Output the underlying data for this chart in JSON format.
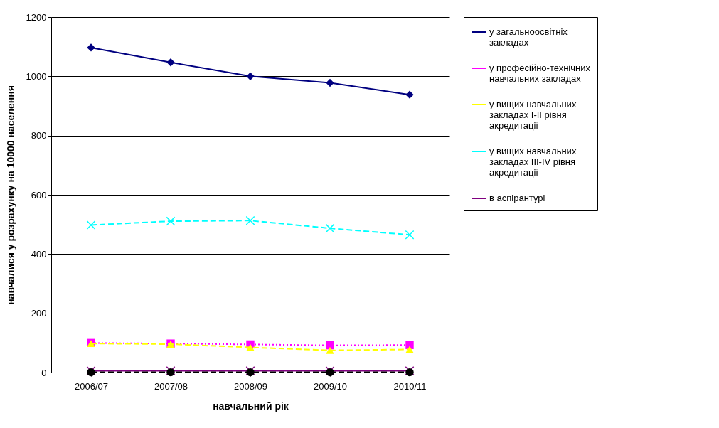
{
  "chart_data": {
    "type": "line",
    "xlabel": "навчальний рік",
    "ylabel": "навчалися у розрахунку на 10000 населення",
    "categories": [
      "2006/07",
      "2007/08",
      "2008/09",
      "2009/10",
      "2010/11"
    ],
    "series": [
      {
        "name": "у загальноосвітніх закладах",
        "color": "#000080",
        "marker": "diamond",
        "line_style": "solid",
        "values": [
          1097,
          1047,
          1000,
          978,
          938
        ]
      },
      {
        "name": "у професійно-технічних навчальних закладах",
        "color": "#ff00ff",
        "marker": "square",
        "line_style": "dotted",
        "values": [
          100,
          98,
          95,
          92,
          93
        ]
      },
      {
        "name": "у вищих навчальних закладах I-II рівня акредитації",
        "color": "#ffff00",
        "marker": "triangle",
        "line_style": "dashed",
        "values": [
          98,
          96,
          85,
          75,
          78
        ]
      },
      {
        "name": "у вищих навчальних закладах III-IV рівня акредитації",
        "color": "#00ffff",
        "marker": "cross",
        "line_style": "dashed",
        "values": [
          498,
          511,
          513,
          487,
          465
        ]
      },
      {
        "name": "в аспірантурі",
        "color": "#800080",
        "marker": "cross",
        "line_style": "solid",
        "values": [
          6,
          6,
          6,
          6,
          6
        ]
      },
      {
        "color": "#000000",
        "marker": "circle",
        "line_style": "dashed",
        "values": [
          1,
          1,
          1,
          1,
          1
        ]
      }
    ],
    "ylim": [
      0,
      1200
    ],
    "yticks": [
      0,
      200,
      400,
      600,
      800,
      1000,
      1200
    ],
    "grid": "y",
    "legend": "right"
  }
}
